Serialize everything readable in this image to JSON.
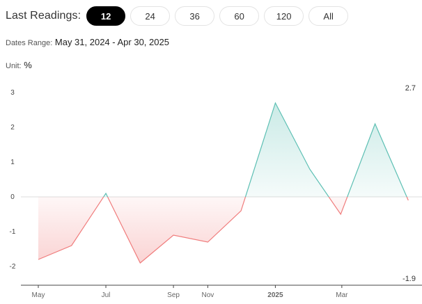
{
  "header": {
    "last_readings_label": "Last Readings:",
    "buttons": [
      {
        "label": "12",
        "active": true
      },
      {
        "label": "24",
        "active": false
      },
      {
        "label": "36",
        "active": false
      },
      {
        "label": "60",
        "active": false
      },
      {
        "label": "120",
        "active": false
      },
      {
        "label": "All",
        "active": false
      }
    ],
    "dates_range_label": "Dates Range:",
    "dates_range_value": "May 31, 2024 - Apr 30, 2025",
    "unit_label": "Unit:",
    "unit_value": "%"
  },
  "colors": {
    "positive": "#5cbfb3",
    "negative": "#f07c7c",
    "active_button": "#000000"
  },
  "chart_data": {
    "type": "area",
    "x": [
      "2024-05-31",
      "2024-06-30",
      "2024-07-31",
      "2024-08-31",
      "2024-09-30",
      "2024-10-31",
      "2024-11-30",
      "2024-12-31",
      "2025-01-31",
      "2025-02-28",
      "2025-03-31",
      "2025-04-30"
    ],
    "values": [
      -1.8,
      -1.4,
      0.1,
      -1.9,
      -1.1,
      -1.3,
      -0.4,
      2.7,
      0.8,
      -0.5,
      2.1,
      -0.1
    ],
    "yticks": [
      "3",
      "2",
      "1",
      "0",
      "-1",
      "-2"
    ],
    "ylim": [
      -2.6,
      3.3
    ],
    "xticks": [
      {
        "label": "May",
        "date": "2024-05-31"
      },
      {
        "label": "Jul",
        "date": "2024-07-31"
      },
      {
        "label": "Sep",
        "date": "2024-09-30"
      },
      {
        "label": "Nov",
        "date": "2024-10-31"
      },
      {
        "label": "2025",
        "date": "2024-12-31"
      },
      {
        "label": "Mar",
        "date": "2025-03-01"
      }
    ],
    "max_label": "2.7",
    "min_label": "-1.9",
    "title": "",
    "xlabel": "",
    "ylabel": ""
  }
}
